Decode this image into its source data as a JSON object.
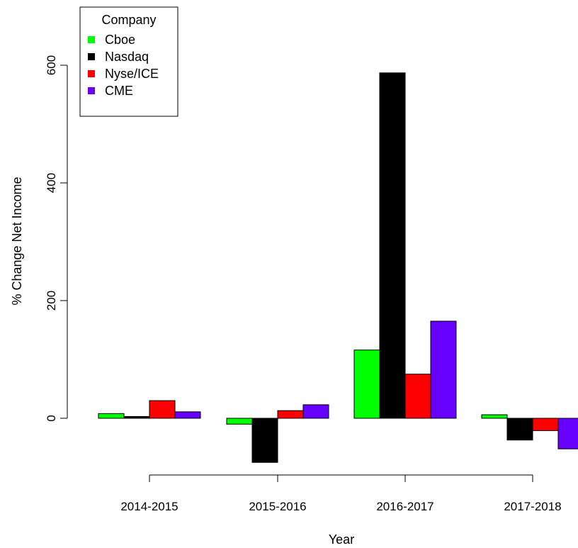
{
  "chart_data": {
    "type": "bar",
    "xlabel": "Year",
    "ylabel": "% Change Net Income",
    "categories": [
      "2014-2015",
      "2015-2016",
      "2016-2017",
      "2017-2018"
    ],
    "yticks": [
      0,
      200,
      400,
      600
    ],
    "ylim": [
      -80,
      700
    ],
    "legend": {
      "title": "Company",
      "position": "top-left"
    },
    "series": [
      {
        "name": "Cboe",
        "color": "#00ff00",
        "values": [
          8,
          -10,
          116,
          6
        ]
      },
      {
        "name": "Nasdaq",
        "color": "#000000",
        "values": [
          3,
          -75,
          587,
          -37
        ]
      },
      {
        "name": "Nyse/ICE",
        "color": "#ff0000",
        "values": [
          30,
          13,
          75,
          -21
        ]
      },
      {
        "name": "CME",
        "color": "#6600ff",
        "values": [
          11,
          23,
          165,
          -52
        ]
      }
    ]
  }
}
